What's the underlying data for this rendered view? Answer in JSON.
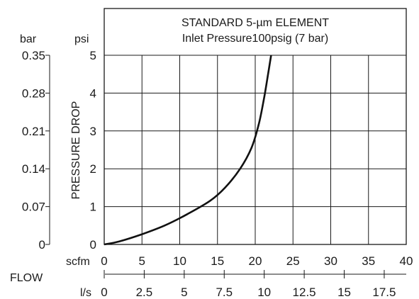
{
  "chart_data": {
    "type": "line",
    "title": "STANDARD 5-µm ELEMENT",
    "subtitle": "Inlet Pressure100psig (7 bar)",
    "ylabel": "PRESSURE DROP",
    "xlabel": "FLOW",
    "y_unit_left": "bar",
    "y_unit_right": "psi",
    "x_unit_top": "scfm",
    "x_unit_bottom": "l/s",
    "ylim": [
      0,
      5
    ],
    "xlim": [
      0,
      40
    ],
    "y_ticks_psi": [
      "0",
      "1",
      "2",
      "3",
      "4",
      "5"
    ],
    "y_ticks_bar": [
      "0",
      "0.07",
      "0.14",
      "0.21",
      "0.28",
      "0.35"
    ],
    "x_ticks_scfm": [
      "0",
      "5",
      "10",
      "15",
      "20",
      "25",
      "30",
      "35",
      "40"
    ],
    "x_ticks_ls": [
      "0",
      "2.5",
      "5",
      "7.5",
      "10",
      "12.5",
      "15",
      "17.5"
    ],
    "grid": true,
    "series": [
      {
        "x": [
          0,
          2,
          5,
          8,
          11,
          14,
          16,
          18,
          19.5,
          20.5,
          21.2,
          21.7,
          22.1
        ],
        "y": [
          0,
          0.08,
          0.27,
          0.5,
          0.8,
          1.15,
          1.5,
          2.0,
          2.55,
          3.2,
          3.9,
          4.5,
          5.0
        ]
      }
    ]
  }
}
